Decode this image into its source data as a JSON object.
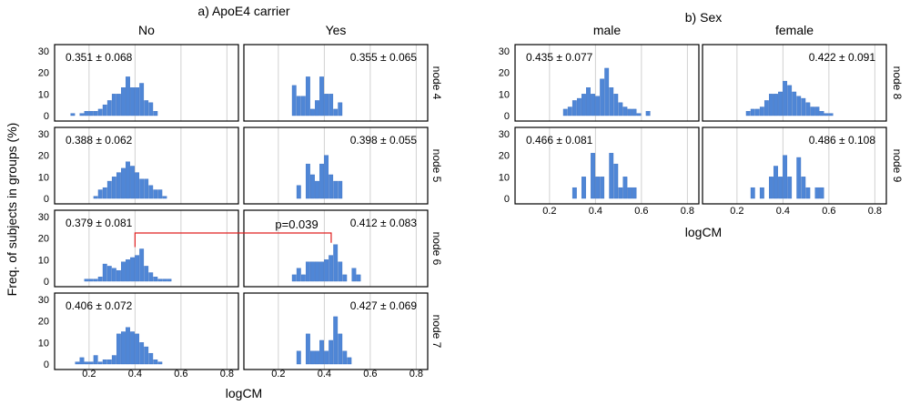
{
  "figure": {
    "panel_a_title": "a) ApoE4 carrier",
    "panel_b_title": "b) Sex",
    "ylabel": "Freq. of subjects in groups (%)",
    "xlabel": "logCM",
    "bar_color": "#4f86d6",
    "annotation_color": "#e02020"
  },
  "chart_data": [
    {
      "type": "bar",
      "panel": "a",
      "title": "a) ApoE4 carrier",
      "columns": [
        "No",
        "Yes"
      ],
      "rows": [
        "node 4",
        "node 5",
        "node 6",
        "node 7"
      ],
      "xlabel": "logCM",
      "ylabel": "Freq. of subjects in groups (%)",
      "xlim": [
        0.05,
        0.85
      ],
      "xticks": [
        "0.2",
        "0.4",
        "0.6",
        "0.8"
      ],
      "ylim": [
        0,
        30
      ],
      "yticks": [
        "0",
        "10",
        "20",
        "30"
      ],
      "bin_width": 0.02,
      "grid": "vertical",
      "significance": {
        "text": "p=0.039",
        "row": "node 6",
        "from": [
          "No",
          0.4
        ],
        "to": [
          "Yes",
          0.43
        ]
      },
      "panels": [
        {
          "row": "node 4",
          "column": "No",
          "stat": "0.351 ± 0.068",
          "bins": [
            [
              0.12,
              1
            ],
            [
              0.16,
              1
            ],
            [
              0.18,
              2
            ],
            [
              0.2,
              2
            ],
            [
              0.22,
              2
            ],
            [
              0.24,
              3
            ],
            [
              0.26,
              5
            ],
            [
              0.28,
              7
            ],
            [
              0.3,
              10
            ],
            [
              0.32,
              10
            ],
            [
              0.34,
              13
            ],
            [
              0.36,
              18
            ],
            [
              0.38,
              13
            ],
            [
              0.4,
              13
            ],
            [
              0.42,
              15
            ],
            [
              0.44,
              7
            ],
            [
              0.46,
              6
            ],
            [
              0.48,
              2
            ]
          ]
        },
        {
          "row": "node 4",
          "column": "Yes",
          "stat": "0.355 ± 0.065",
          "bins": [
            [
              0.26,
              14
            ],
            [
              0.28,
              9
            ],
            [
              0.3,
              9
            ],
            [
              0.32,
              18
            ],
            [
              0.34,
              3
            ],
            [
              0.36,
              7
            ],
            [
              0.38,
              18
            ],
            [
              0.4,
              10
            ],
            [
              0.42,
              10
            ],
            [
              0.44,
              3
            ],
            [
              0.46,
              6
            ]
          ]
        },
        {
          "row": "node 5",
          "column": "No",
          "stat": "0.388 ± 0.062",
          "bins": [
            [
              0.22,
              1
            ],
            [
              0.24,
              4
            ],
            [
              0.26,
              5
            ],
            [
              0.28,
              8
            ],
            [
              0.3,
              10
            ],
            [
              0.32,
              12
            ],
            [
              0.34,
              14
            ],
            [
              0.36,
              17
            ],
            [
              0.38,
              15
            ],
            [
              0.4,
              12
            ],
            [
              0.42,
              9
            ],
            [
              0.44,
              9
            ],
            [
              0.46,
              6
            ],
            [
              0.48,
              4
            ],
            [
              0.5,
              4
            ],
            [
              0.52,
              1
            ]
          ]
        },
        {
          "row": "node 5",
          "column": "Yes",
          "stat": "0.398 ± 0.055",
          "bins": [
            [
              0.28,
              6
            ],
            [
              0.3,
              0
            ],
            [
              0.32,
              16
            ],
            [
              0.34,
              11
            ],
            [
              0.36,
              8
            ],
            [
              0.38,
              16
            ],
            [
              0.4,
              20
            ],
            [
              0.42,
              11
            ],
            [
              0.44,
              8
            ],
            [
              0.46,
              8
            ]
          ]
        },
        {
          "row": "node 6",
          "column": "No",
          "stat": "0.379 ± 0.081",
          "bins": [
            [
              0.18,
              1
            ],
            [
              0.2,
              1
            ],
            [
              0.22,
              1
            ],
            [
              0.24,
              2
            ],
            [
              0.26,
              8
            ],
            [
              0.28,
              7
            ],
            [
              0.3,
              6
            ],
            [
              0.32,
              5
            ],
            [
              0.34,
              9
            ],
            [
              0.36,
              10
            ],
            [
              0.38,
              11
            ],
            [
              0.4,
              12
            ],
            [
              0.42,
              15
            ],
            [
              0.44,
              7
            ],
            [
              0.46,
              4
            ],
            [
              0.48,
              2
            ],
            [
              0.5,
              1
            ],
            [
              0.52,
              1
            ],
            [
              0.54,
              1
            ]
          ]
        },
        {
          "row": "node 6",
          "column": "Yes",
          "stat": "0.412 ± 0.083",
          "bins": [
            [
              0.26,
              3
            ],
            [
              0.28,
              6
            ],
            [
              0.3,
              3
            ],
            [
              0.32,
              9
            ],
            [
              0.34,
              9
            ],
            [
              0.36,
              9
            ],
            [
              0.38,
              9
            ],
            [
              0.4,
              10
            ],
            [
              0.42,
              12
            ],
            [
              0.44,
              17
            ],
            [
              0.46,
              9
            ],
            [
              0.48,
              3
            ],
            [
              0.5,
              0
            ],
            [
              0.52,
              6
            ],
            [
              0.54,
              3
            ]
          ]
        },
        {
          "row": "node 7",
          "column": "No",
          "stat": "0.406 ± 0.072",
          "bins": [
            [
              0.14,
              1
            ],
            [
              0.16,
              3
            ],
            [
              0.18,
              1
            ],
            [
              0.2,
              1
            ],
            [
              0.22,
              4
            ],
            [
              0.24,
              1
            ],
            [
              0.26,
              2
            ],
            [
              0.28,
              2
            ],
            [
              0.3,
              4
            ],
            [
              0.32,
              14
            ],
            [
              0.34,
              15
            ],
            [
              0.36,
              17
            ],
            [
              0.38,
              15
            ],
            [
              0.4,
              14
            ],
            [
              0.42,
              10
            ],
            [
              0.44,
              8
            ],
            [
              0.46,
              5
            ],
            [
              0.48,
              2
            ],
            [
              0.5,
              1
            ]
          ]
        },
        {
          "row": "node 7",
          "column": "Yes",
          "stat": "0.427 ± 0.069",
          "bins": [
            [
              0.28,
              6
            ],
            [
              0.3,
              0
            ],
            [
              0.32,
              14
            ],
            [
              0.34,
              6
            ],
            [
              0.36,
              6
            ],
            [
              0.38,
              11
            ],
            [
              0.4,
              6
            ],
            [
              0.42,
              11
            ],
            [
              0.44,
              22
            ],
            [
              0.46,
              14
            ],
            [
              0.48,
              6
            ],
            [
              0.5,
              3
            ]
          ]
        }
      ]
    },
    {
      "type": "bar",
      "panel": "b",
      "title": "b) Sex",
      "columns": [
        "male",
        "female"
      ],
      "rows": [
        "node 8",
        "node 9"
      ],
      "xlabel": "logCM",
      "xlim": [
        0.05,
        0.85
      ],
      "xticks": [
        "0.2",
        "0.4",
        "0.6",
        "0.8"
      ],
      "ylim": [
        0,
        30
      ],
      "yticks": [
        "0",
        "10",
        "20",
        "30"
      ],
      "bin_width": 0.02,
      "grid": "vertical",
      "panels": [
        {
          "row": "node 8",
          "column": "male",
          "stat": "0.435 ± 0.077",
          "bins": [
            [
              0.26,
              3
            ],
            [
              0.28,
              4
            ],
            [
              0.3,
              7
            ],
            [
              0.32,
              8
            ],
            [
              0.34,
              10
            ],
            [
              0.36,
              13
            ],
            [
              0.38,
              10
            ],
            [
              0.4,
              9
            ],
            [
              0.42,
              17
            ],
            [
              0.44,
              22
            ],
            [
              0.46,
              13
            ],
            [
              0.48,
              10
            ],
            [
              0.5,
              6
            ],
            [
              0.52,
              4
            ],
            [
              0.54,
              3
            ],
            [
              0.56,
              3
            ],
            [
              0.58,
              1
            ],
            [
              0.62,
              2
            ]
          ]
        },
        {
          "row": "node 8",
          "column": "female",
          "stat": "0.422 ± 0.091",
          "bins": [
            [
              0.24,
              2
            ],
            [
              0.26,
              3
            ],
            [
              0.28,
              3
            ],
            [
              0.3,
              4
            ],
            [
              0.32,
              7
            ],
            [
              0.34,
              10
            ],
            [
              0.36,
              10
            ],
            [
              0.38,
              11
            ],
            [
              0.4,
              16
            ],
            [
              0.42,
              14
            ],
            [
              0.44,
              11
            ],
            [
              0.46,
              9
            ],
            [
              0.48,
              8
            ],
            [
              0.5,
              6
            ],
            [
              0.52,
              4
            ],
            [
              0.54,
              4
            ],
            [
              0.56,
              2
            ],
            [
              0.58,
              1
            ],
            [
              0.6,
              1
            ]
          ]
        },
        {
          "row": "node 9",
          "column": "male",
          "stat": "0.466 ± 0.081",
          "bins": [
            [
              0.3,
              5
            ],
            [
              0.32,
              0
            ],
            [
              0.34,
              10
            ],
            [
              0.36,
              0
            ],
            [
              0.38,
              21
            ],
            [
              0.4,
              10
            ],
            [
              0.42,
              10
            ],
            [
              0.44,
              0
            ],
            [
              0.46,
              21
            ],
            [
              0.48,
              16
            ],
            [
              0.5,
              5
            ],
            [
              0.52,
              10
            ],
            [
              0.54,
              5
            ],
            [
              0.56,
              5
            ]
          ]
        },
        {
          "row": "node 9",
          "column": "female",
          "stat": "0.486 ± 0.108",
          "bins": [
            [
              0.26,
              5
            ],
            [
              0.28,
              0
            ],
            [
              0.3,
              5
            ],
            [
              0.32,
              0
            ],
            [
              0.34,
              10
            ],
            [
              0.36,
              15
            ],
            [
              0.38,
              10
            ],
            [
              0.4,
              20
            ],
            [
              0.42,
              10
            ],
            [
              0.44,
              0
            ],
            [
              0.46,
              19
            ],
            [
              0.48,
              10
            ],
            [
              0.5,
              5
            ],
            [
              0.52,
              0
            ],
            [
              0.54,
              5
            ],
            [
              0.56,
              5
            ]
          ]
        }
      ]
    }
  ]
}
